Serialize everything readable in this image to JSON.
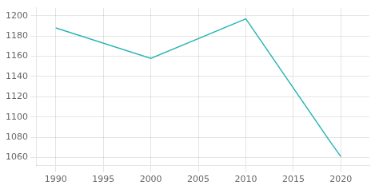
{
  "chart_data": {
    "type": "line",
    "x": [
      1990,
      2000,
      2010,
      2019,
      2020
    ],
    "values": [
      1188,
      1158,
      1197,
      1074,
      1061
    ],
    "color": "#2ab5b5",
    "xlim": [
      1988,
      2023
    ],
    "ylim": [
      1052,
      1208
    ],
    "xticks": [
      1990,
      1995,
      2000,
      2005,
      2010,
      2015,
      2020
    ],
    "yticks": [
      1060,
      1080,
      1100,
      1120,
      1140,
      1160,
      1180,
      1200
    ],
    "grid": true
  }
}
